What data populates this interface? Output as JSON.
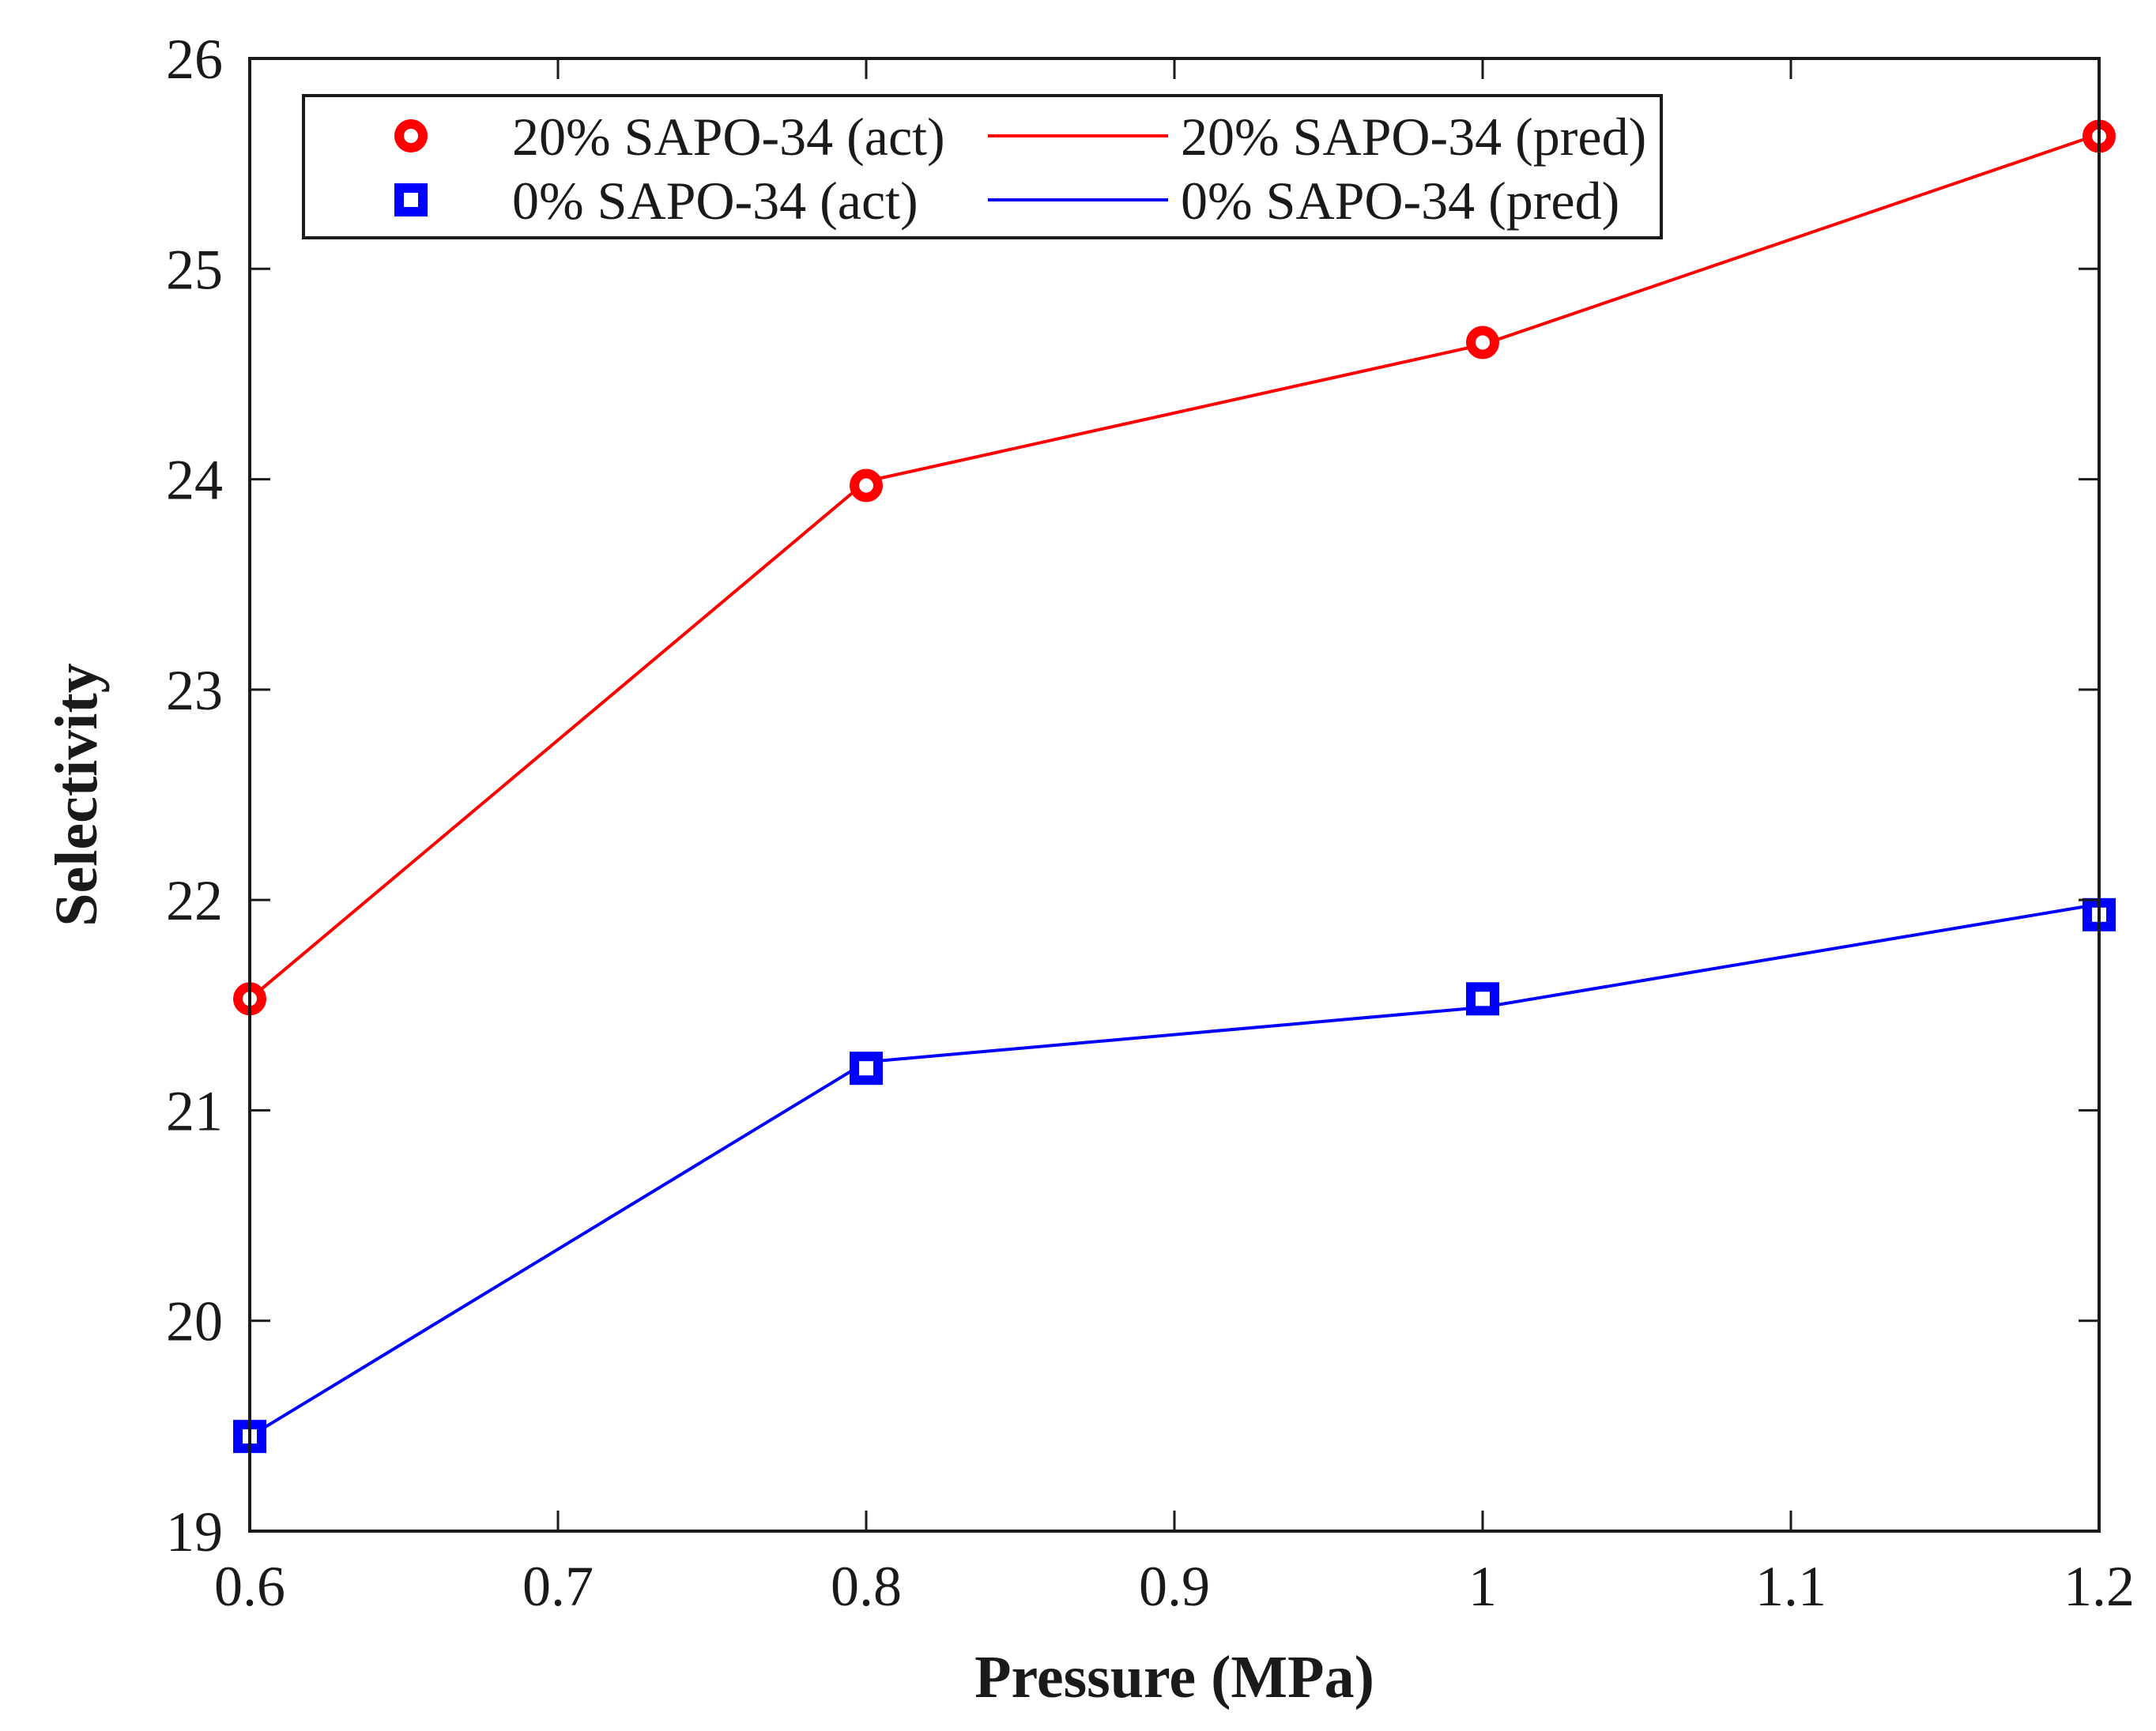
{
  "chart_data": {
    "type": "line",
    "xlabel": "Pressure (MPa)",
    "ylabel": "Selectivity",
    "xlim": [
      0.6,
      1.2
    ],
    "ylim": [
      19,
      26
    ],
    "x_ticks": [
      0.6,
      0.7,
      0.8,
      0.9,
      1.0,
      1.1,
      1.2
    ],
    "x_tick_labels": [
      "0.6",
      "0.7",
      "0.8",
      "0.9",
      "1",
      "1.1",
      "1.2"
    ],
    "y_ticks": [
      19,
      20,
      21,
      22,
      23,
      24,
      25,
      26
    ],
    "y_tick_labels": [
      "19",
      "20",
      "21",
      "22",
      "23",
      "24",
      "25",
      "26"
    ],
    "grid": false,
    "legend_position": "top",
    "series": [
      {
        "name": "20% SAPO-34 (act)",
        "kind": "markers",
        "marker": "circle",
        "color": "#ff0000",
        "x": [
          0.6,
          0.8,
          1.0,
          1.2
        ],
        "y": [
          21.53,
          23.97,
          24.65,
          25.63
        ]
      },
      {
        "name": "20% SAPO-34 (pred)",
        "kind": "line",
        "color": "#ff0000",
        "x": [
          0.6,
          0.8,
          1.0,
          1.2
        ],
        "y": [
          21.53,
          23.99,
          24.64,
          25.64
        ]
      },
      {
        "name": "0% SAPO-34 (act)",
        "kind": "markers",
        "marker": "square",
        "color": "#0000ff",
        "x": [
          0.6,
          0.8,
          1.0,
          1.2
        ],
        "y": [
          19.45,
          21.2,
          21.53,
          21.93
        ]
      },
      {
        "name": "0% SAPO-34 (pred)",
        "kind": "line",
        "color": "#0000ff",
        "x": [
          0.6,
          0.8,
          1.0,
          1.2
        ],
        "y": [
          19.45,
          21.23,
          21.49,
          21.98
        ]
      }
    ]
  }
}
